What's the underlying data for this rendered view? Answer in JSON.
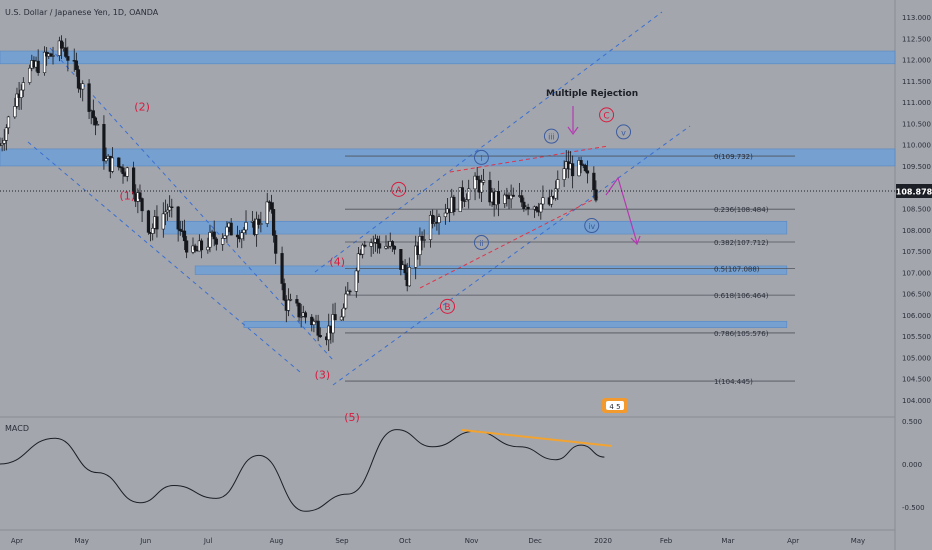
{
  "header": {
    "title": "U.S. Dollar / Japanese Yen, 1D, OANDA"
  },
  "indicator": {
    "name": "MACD",
    "ticks": [
      "0.500",
      "0.000",
      "-0.500"
    ]
  },
  "annotations": {
    "multiple_rejection": "Multiple Rejection",
    "event_badge": "4 5",
    "last_price": "108.878"
  },
  "colors": {
    "background": "#a3a6ad",
    "zone": "#6f9fd6",
    "channel": "#3b6fd1",
    "wedge": "#e0344a",
    "wave_red": "#d81b3f",
    "wave_blue": "#3d5c9e",
    "arrow": "#b43ab0",
    "macd_trend": "#f2a330",
    "axis_text": "#2a2e39",
    "fib_line": "#4f535b"
  },
  "chart_data": {
    "type": "candlestick",
    "title": "U.S. Dollar / Japanese Yen, 1D, OANDA",
    "y_axis": {
      "ticks": [
        113.0,
        112.5,
        112.0,
        111.5,
        111.0,
        110.5,
        110.0,
        109.5,
        109.0,
        108.5,
        108.0,
        107.5,
        107.0,
        106.5,
        106.0,
        105.5,
        105.0,
        104.5,
        104.0
      ],
      "tick_labels": [
        "113.000",
        "112.500",
        "112.000",
        "111.500",
        "111.000",
        "110.500",
        "110.000",
        "109.500",
        "109.000",
        "108.500",
        "108.000",
        "107.500",
        "107.000",
        "106.500",
        "106.000",
        "105.500",
        "105.000",
        "104.500",
        "104.000"
      ],
      "range": [
        103.8,
        113.2
      ],
      "last_price": 108.878
    },
    "x_axis": {
      "labels": [
        "Apr",
        "May",
        "Jun",
        "Jul",
        "Aug",
        "Sep",
        "Oct",
        "Nov",
        "Dec",
        "2020",
        "Feb",
        "Mar",
        "Apr",
        "May"
      ],
      "range": [
        "2019-03-25",
        "2020-05-20"
      ]
    },
    "close_series": [
      {
        "date": "2019-03-25",
        "close": 110.0
      },
      {
        "date": "2019-04-05",
        "close": 111.6
      },
      {
        "date": "2019-04-15",
        "close": 112.0
      },
      {
        "date": "2019-04-24",
        "close": 112.3
      },
      {
        "date": "2019-05-06",
        "close": 111.0
      },
      {
        "date": "2019-05-14",
        "close": 109.6
      },
      {
        "date": "2019-05-24",
        "close": 109.4
      },
      {
        "date": "2019-06-04",
        "close": 108.0
      },
      {
        "date": "2019-06-12",
        "close": 108.5
      },
      {
        "date": "2019-06-24",
        "close": 107.4
      },
      {
        "date": "2019-07-03",
        "close": 107.8
      },
      {
        "date": "2019-07-12",
        "close": 108.0
      },
      {
        "date": "2019-07-22",
        "close": 108.0
      },
      {
        "date": "2019-07-30",
        "close": 108.6
      },
      {
        "date": "2019-08-06",
        "close": 106.3
      },
      {
        "date": "2019-08-15",
        "close": 106.0
      },
      {
        "date": "2019-08-26",
        "close": 105.6
      },
      {
        "date": "2019-09-03",
        "close": 106.1
      },
      {
        "date": "2019-09-12",
        "close": 107.8
      },
      {
        "date": "2019-09-25",
        "close": 107.6
      },
      {
        "date": "2019-10-03",
        "close": 106.9
      },
      {
        "date": "2019-10-14",
        "close": 108.3
      },
      {
        "date": "2019-10-24",
        "close": 108.6
      },
      {
        "date": "2019-11-05",
        "close": 109.1
      },
      {
        "date": "2019-11-13",
        "close": 108.7
      },
      {
        "date": "2019-11-22",
        "close": 108.7
      },
      {
        "date": "2019-12-03",
        "close": 108.6
      },
      {
        "date": "2019-12-10",
        "close": 108.6
      },
      {
        "date": "2019-12-16",
        "close": 109.5
      },
      {
        "date": "2019-12-24",
        "close": 109.4
      },
      {
        "date": "2019-12-31",
        "close": 108.878
      }
    ],
    "fib_levels": [
      {
        "ratio": "0",
        "price": 109.732,
        "label": "0(109.732)"
      },
      {
        "ratio": "0.236",
        "price": 108.484,
        "label": "0.236(108.484)"
      },
      {
        "ratio": "0.382",
        "price": 107.712,
        "label": "0.382(107.712)"
      },
      {
        "ratio": "0.5",
        "price": 107.088,
        "label": "0.5(107.088)"
      },
      {
        "ratio": "0.618",
        "price": 106.464,
        "label": "0.618(106.464)"
      },
      {
        "ratio": "0.786",
        "price": 105.576,
        "label": "0.786(105.576)"
      },
      {
        "ratio": "1",
        "price": 104.445,
        "label": "1(104.445)"
      }
    ],
    "zones": [
      {
        "start": "2019-03-25",
        "end": "2020-05-20",
        "low": 111.9,
        "high": 112.2
      },
      {
        "start": "2019-03-25",
        "end": "2020-05-20",
        "low": 109.5,
        "high": 109.9
      },
      {
        "start": "2019-06-10",
        "end": "2020-03-30",
        "low": 107.9,
        "high": 108.2
      },
      {
        "start": "2019-06-25",
        "end": "2020-03-30",
        "low": 106.95,
        "high": 107.15
      },
      {
        "start": "2019-07-18",
        "end": "2020-03-30",
        "low": 105.7,
        "high": 105.85
      }
    ],
    "wave_labels": [
      {
        "text": "(1)",
        "date": "2019-05-24",
        "price": 108.8,
        "color": "red"
      },
      {
        "text": "(2)",
        "date": "2019-05-31",
        "price": 110.9,
        "color": "red"
      },
      {
        "text": "(3)",
        "date": "2019-08-24",
        "price": 104.6,
        "color": "red"
      },
      {
        "text": "(4)",
        "date": "2019-08-31",
        "price": 107.25,
        "color": "red"
      },
      {
        "text": "(5)",
        "date": "2019-09-07",
        "price": 103.6,
        "color": "red"
      },
      {
        "text": "A",
        "date": "2019-09-29",
        "price": 108.95,
        "circled": true,
        "color": "red"
      },
      {
        "text": "B",
        "date": "2019-10-22",
        "price": 106.2,
        "circled": true,
        "color": "red"
      },
      {
        "text": "C",
        "date": "2020-01-05",
        "price": 110.7,
        "circled": true,
        "color": "red"
      },
      {
        "text": "i",
        "date": "2019-11-07",
        "price": 109.7,
        "circled": true,
        "color": "blue"
      },
      {
        "text": "ii",
        "date": "2019-11-07",
        "price": 107.7,
        "circled": true,
        "color": "blue"
      },
      {
        "text": "iii",
        "date": "2019-12-10",
        "price": 110.2,
        "circled": true,
        "color": "blue"
      },
      {
        "text": "iv",
        "date": "2019-12-29",
        "price": 108.1,
        "circled": true,
        "color": "blue"
      },
      {
        "text": "v",
        "date": "2020-01-13",
        "price": 110.3,
        "circled": true,
        "color": "blue"
      }
    ],
    "macd": {
      "ticks": [
        0.5,
        0.0,
        -0.5
      ],
      "series": [
        {
          "date": "2019-03-25",
          "value": 0.0
        },
        {
          "date": "2019-04-20",
          "value": 0.3
        },
        {
          "date": "2019-05-10",
          "value": -0.1
        },
        {
          "date": "2019-05-30",
          "value": -0.45
        },
        {
          "date": "2019-06-15",
          "value": -0.25
        },
        {
          "date": "2019-07-05",
          "value": -0.4
        },
        {
          "date": "2019-07-25",
          "value": 0.1
        },
        {
          "date": "2019-08-16",
          "value": -0.55
        },
        {
          "date": "2019-09-05",
          "value": -0.35
        },
        {
          "date": "2019-09-28",
          "value": 0.4
        },
        {
          "date": "2019-10-15",
          "value": 0.2
        },
        {
          "date": "2019-11-04",
          "value": 0.38
        },
        {
          "date": "2019-11-25",
          "value": 0.2
        },
        {
          "date": "2019-12-12",
          "value": 0.05
        },
        {
          "date": "2019-12-24",
          "value": 0.22
        },
        {
          "date": "2020-01-04",
          "value": 0.08
        }
      ]
    }
  }
}
